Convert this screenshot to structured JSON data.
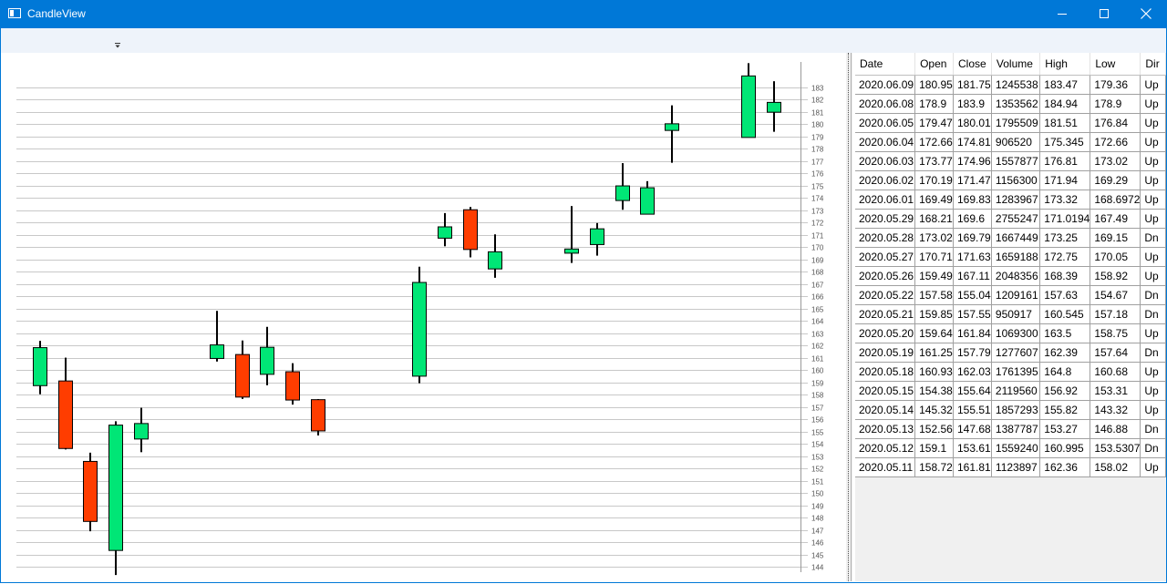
{
  "window": {
    "title": "CandleView",
    "icon": "window-icon"
  },
  "colors": {
    "up": "#00e676",
    "down": "#ff3d00",
    "grid_line": "#c8c8c8",
    "accent": "#0078d7"
  },
  "chart_data": {
    "type": "candlestick",
    "y_ticks": [
      144,
      145,
      146,
      147,
      148,
      149,
      150,
      151,
      152,
      153,
      154,
      155,
      156,
      157,
      158,
      159,
      160,
      161,
      162,
      163,
      164,
      165,
      166,
      167,
      168,
      169,
      170,
      171,
      172,
      173,
      174,
      175,
      176,
      177,
      178,
      179,
      180,
      181,
      182,
      183
    ],
    "ylim": [
      143.32,
      184.94
    ],
    "grid": true,
    "candles": [
      {
        "date": "2020.05.11",
        "open": 158.72,
        "close": 161.81,
        "high": 162.36,
        "low": 158.02
      },
      {
        "date": "2020.05.12",
        "open": 159.1,
        "close": 153.61,
        "high": 160.995,
        "low": 153.5307
      },
      {
        "date": "2020.05.13",
        "open": 152.56,
        "close": 147.68,
        "high": 153.27,
        "low": 146.88
      },
      {
        "date": "2020.05.14",
        "open": 145.32,
        "close": 155.51,
        "high": 155.82,
        "low": 143.32
      },
      {
        "date": "2020.05.15",
        "open": 154.38,
        "close": 155.64,
        "high": 156.92,
        "low": 153.31
      },
      {
        "date": "2020.05.18",
        "open": 160.93,
        "close": 162.03,
        "high": 164.8,
        "low": 160.68
      },
      {
        "date": "2020.05.19",
        "open": 161.25,
        "close": 157.79,
        "high": 162.39,
        "low": 157.64
      },
      {
        "date": "2020.05.20",
        "open": 159.64,
        "close": 161.84,
        "high": 163.5,
        "low": 158.75
      },
      {
        "date": "2020.05.21",
        "open": 159.85,
        "close": 157.55,
        "high": 160.545,
        "low": 157.18
      },
      {
        "date": "2020.05.22",
        "open": 157.58,
        "close": 155.04,
        "high": 157.63,
        "low": 154.67
      },
      {
        "date": "2020.05.26",
        "open": 159.49,
        "close": 167.11,
        "high": 168.39,
        "low": 158.92
      },
      {
        "date": "2020.05.27",
        "open": 170.71,
        "close": 171.63,
        "high": 172.75,
        "low": 170.05
      },
      {
        "date": "2020.05.28",
        "open": 173.02,
        "close": 169.79,
        "high": 173.25,
        "low": 169.15
      },
      {
        "date": "2020.05.29",
        "open": 168.21,
        "close": 169.6,
        "high": 171.0194,
        "low": 167.49
      },
      {
        "date": "2020.06.01",
        "open": 169.49,
        "close": 169.83,
        "high": 173.32,
        "low": 168.6972
      },
      {
        "date": "2020.06.02",
        "open": 170.19,
        "close": 171.47,
        "high": 171.94,
        "low": 169.29
      },
      {
        "date": "2020.06.03",
        "open": 173.77,
        "close": 174.96,
        "high": 176.81,
        "low": 173.02
      },
      {
        "date": "2020.06.04",
        "open": 172.66,
        "close": 174.81,
        "high": 175.345,
        "low": 172.66
      },
      {
        "date": "2020.06.05",
        "open": 179.47,
        "close": 180.01,
        "high": 181.51,
        "low": 176.84
      },
      {
        "date": "2020.06.08",
        "open": 178.9,
        "close": 183.9,
        "high": 184.94,
        "low": 178.9
      },
      {
        "date": "2020.06.09",
        "open": 180.95,
        "close": 181.75,
        "high": 183.47,
        "low": 179.36
      }
    ]
  },
  "table": {
    "columns": [
      "Date",
      "Open",
      "Close",
      "Volume",
      "High",
      "Low",
      "Dir"
    ],
    "rows": [
      [
        "2020.06.09",
        "180.95",
        "181.75",
        "1245538",
        "183.47",
        "179.36",
        "Up"
      ],
      [
        "2020.06.08",
        "178.9",
        "183.9",
        "1353562",
        "184.94",
        "178.9",
        "Up"
      ],
      [
        "2020.06.05",
        "179.47",
        "180.01",
        "1795509",
        "181.51",
        "176.84",
        "Up"
      ],
      [
        "2020.06.04",
        "172.66",
        "174.81",
        "906520",
        "175.345",
        "172.66",
        "Up"
      ],
      [
        "2020.06.03",
        "173.77",
        "174.96",
        "1557877",
        "176.81",
        "173.02",
        "Up"
      ],
      [
        "2020.06.02",
        "170.19",
        "171.47",
        "1156300",
        "171.94",
        "169.29",
        "Up"
      ],
      [
        "2020.06.01",
        "169.49",
        "169.83",
        "1283967",
        "173.32",
        "168.6972",
        "Up"
      ],
      [
        "2020.05.29",
        "168.21",
        "169.6",
        "2755247",
        "171.0194",
        "167.49",
        "Up"
      ],
      [
        "2020.05.28",
        "173.02",
        "169.79",
        "1667449",
        "173.25",
        "169.15",
        "Dn"
      ],
      [
        "2020.05.27",
        "170.71",
        "171.63",
        "1659188",
        "172.75",
        "170.05",
        "Up"
      ],
      [
        "2020.05.26",
        "159.49",
        "167.11",
        "2048356",
        "168.39",
        "158.92",
        "Up"
      ],
      [
        "2020.05.22",
        "157.58",
        "155.04",
        "1209161",
        "157.63",
        "154.67",
        "Dn"
      ],
      [
        "2020.05.21",
        "159.85",
        "157.55",
        "950917",
        "160.545",
        "157.18",
        "Dn"
      ],
      [
        "2020.05.20",
        "159.64",
        "161.84",
        "1069300",
        "163.5",
        "158.75",
        "Up"
      ],
      [
        "2020.05.19",
        "161.25",
        "157.79",
        "1277607",
        "162.39",
        "157.64",
        "Dn"
      ],
      [
        "2020.05.18",
        "160.93",
        "162.03",
        "1761395",
        "164.8",
        "160.68",
        "Up"
      ],
      [
        "2020.05.15",
        "154.38",
        "155.64",
        "2119560",
        "156.92",
        "153.31",
        "Up"
      ],
      [
        "2020.05.14",
        "145.32",
        "155.51",
        "1857293",
        "155.82",
        "143.32",
        "Up"
      ],
      [
        "2020.05.13",
        "152.56",
        "147.68",
        "1387787",
        "153.27",
        "146.88",
        "Dn"
      ],
      [
        "2020.05.12",
        "159.1",
        "153.61",
        "1559240",
        "160.995",
        "153.5307",
        "Dn"
      ],
      [
        "2020.05.11",
        "158.72",
        "161.81",
        "1123897",
        "162.36",
        "158.02",
        "Up"
      ]
    ]
  }
}
